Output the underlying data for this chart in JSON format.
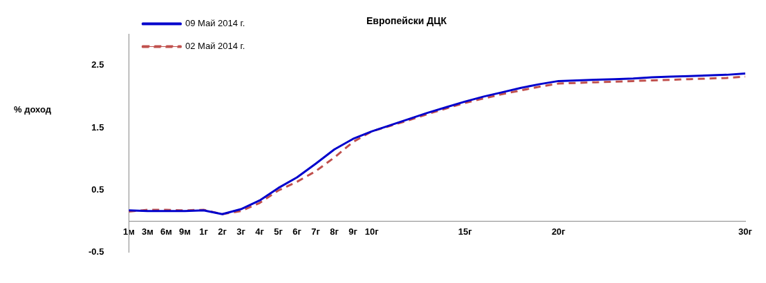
{
  "chart_data": {
    "type": "line",
    "title": "Европейски ДЦК",
    "ylabel": "% доход",
    "categories": [
      "1м",
      "3м",
      "6м",
      "9м",
      "1г",
      "2г",
      "3г",
      "4г",
      "5г",
      "6г",
      "7г",
      "8г",
      "9г",
      "10г",
      null,
      null,
      null,
      null,
      "15г",
      null,
      null,
      null,
      null,
      "20г",
      null,
      null,
      null,
      null,
      null,
      null,
      null,
      null,
      null,
      "30г"
    ],
    "series": [
      {
        "name": "09 Май 2014 г.",
        "color": "#0000cc",
        "line_style": "solid",
        "values": [
          0.17,
          0.16,
          0.16,
          0.16,
          0.17,
          0.11,
          0.19,
          0.33,
          0.53,
          0.7,
          0.92,
          1.15,
          1.32,
          1.44,
          1.54,
          1.64,
          1.74,
          1.83,
          1.92,
          2.0,
          2.07,
          2.14,
          2.2,
          2.25,
          2.26,
          2.27,
          2.28,
          2.29,
          2.31,
          2.32,
          2.33,
          2.34,
          2.35,
          2.37
        ]
      },
      {
        "name": "02 Май 2014 г.",
        "color": "#c0504d",
        "line_style": "dashed",
        "values": [
          0.15,
          0.18,
          0.18,
          0.17,
          0.18,
          0.11,
          0.16,
          0.29,
          0.49,
          0.63,
          0.8,
          1.02,
          1.27,
          1.44,
          1.53,
          1.62,
          1.72,
          1.81,
          1.9,
          1.97,
          2.04,
          2.1,
          2.16,
          2.21,
          2.22,
          2.23,
          2.24,
          2.25,
          2.26,
          2.27,
          2.28,
          2.29,
          2.3,
          2.32
        ]
      }
    ],
    "ylim": [
      -0.5,
      3
    ],
    "yticks": [
      -0.5,
      0.5,
      1.5,
      2.5
    ],
    "grid": false,
    "legend": "top left",
    "marker": "none"
  }
}
